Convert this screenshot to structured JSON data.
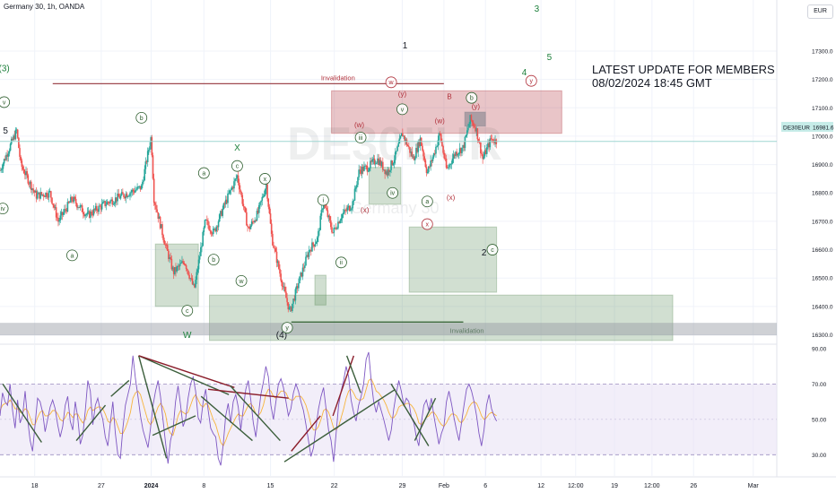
{
  "header": {
    "symbol": "Germany 30, 1h, OANDA",
    "currency": "EUR"
  },
  "watermark": {
    "ticker": "DE30EUR",
    "name": "Germany 30"
  },
  "note": {
    "line1": "LATEST UPDATE FOR MEMBERS",
    "line2": "08/02/2024 18:45 GMT"
  },
  "price_tag": {
    "symbol": "DE30EUR",
    "value": "16981.6"
  },
  "wave_labels": [
    {
      "text": "(3)",
      "t": 0.3,
      "p": 17240,
      "style": "plain-green"
    },
    {
      "text": "v",
      "t": 0.3,
      "p": 17120,
      "style": "circle-green"
    },
    {
      "text": "5",
      "t": 0.4,
      "p": 17020,
      "style": "plain-dark"
    },
    {
      "text": "iv",
      "t": 0.2,
      "p": 16745,
      "style": "circle-green"
    },
    {
      "text": "a",
      "t": 5.2,
      "p": 16580,
      "style": "circle-green"
    },
    {
      "text": "b",
      "t": 10.2,
      "p": 17065,
      "style": "circle-green"
    },
    {
      "text": "W",
      "t": 13.5,
      "p": 16300,
      "style": "plain-green"
    },
    {
      "text": "c",
      "t": 13.5,
      "p": 16385,
      "style": "circle-green"
    },
    {
      "text": "a",
      "t": 14.7,
      "p": 16870,
      "style": "circle-green"
    },
    {
      "text": "b",
      "t": 15.4,
      "p": 16565,
      "style": "circle-green"
    },
    {
      "text": "X",
      "t": 17.1,
      "p": 16960,
      "style": "plain-green"
    },
    {
      "text": "c",
      "t": 17.1,
      "p": 16895,
      "style": "circle-green"
    },
    {
      "text": "w",
      "t": 17.4,
      "p": 16490,
      "style": "circle-green"
    },
    {
      "text": "x",
      "t": 19.1,
      "p": 16850,
      "style": "circle-green"
    },
    {
      "text": "(4)",
      "t": 20.3,
      "p": 16300,
      "style": "plain-dark"
    },
    {
      "text": "y",
      "t": 20.7,
      "p": 16325,
      "style": "circle-green"
    },
    {
      "text": "i",
      "t": 23.3,
      "p": 16775,
      "style": "circle-green"
    },
    {
      "text": "ii",
      "t": 24.6,
      "p": 16555,
      "style": "circle-green"
    },
    {
      "text": "iii",
      "t": 26.0,
      "p": 16995,
      "style": "circle-green"
    },
    {
      "text": "(x)",
      "t": 26.3,
      "p": 16740,
      "style": "plain-red"
    },
    {
      "text": "(w)",
      "t": 25.9,
      "p": 17040,
      "style": "plain-red"
    },
    {
      "text": "iv",
      "t": 28.3,
      "p": 16800,
      "style": "circle-green"
    },
    {
      "text": "1",
      "t": 29.2,
      "p": 17320,
      "style": "plain-dark"
    },
    {
      "text": "w",
      "t": 28.2,
      "p": 17190,
      "style": "circle-red"
    },
    {
      "text": "(y)",
      "t": 29.0,
      "p": 17150,
      "style": "plain-red"
    },
    {
      "text": "v",
      "t": 29.0,
      "p": 17095,
      "style": "circle-green"
    },
    {
      "text": "a",
      "t": 30.8,
      "p": 16770,
      "style": "circle-green"
    },
    {
      "text": "x",
      "t": 30.8,
      "p": 16690,
      "style": "circle-red"
    },
    {
      "text": "(w)",
      "t": 31.7,
      "p": 17055,
      "style": "plain-red"
    },
    {
      "text": "(x)",
      "t": 32.5,
      "p": 16785,
      "style": "plain-red"
    },
    {
      "text": "B",
      "t": 32.4,
      "p": 17140,
      "style": "plain-red"
    },
    {
      "text": "b",
      "t": 34.0,
      "p": 17135,
      "style": "circle-green"
    },
    {
      "text": "(y)",
      "t": 34.3,
      "p": 17105,
      "style": "plain-red"
    },
    {
      "text": "2",
      "t": 34.9,
      "p": 16590,
      "style": "plain-dark"
    },
    {
      "text": "c",
      "t": 35.5,
      "p": 16600,
      "style": "circle-green"
    },
    {
      "text": "4",
      "t": 37.8,
      "p": 17225,
      "style": "plain-green"
    },
    {
      "text": "y",
      "t": 38.3,
      "p": 17195,
      "style": "circle-red"
    },
    {
      "text": "3",
      "t": 38.7,
      "p": 17450,
      "style": "plain-green"
    },
    {
      "text": "5",
      "t": 39.6,
      "p": 17280,
      "style": "plain-green"
    }
  ],
  "annotations": {
    "invalidation_top": "Invalidation",
    "invalidation_bottom": "Invalidation"
  },
  "colors": {
    "accent_green": "#1b7f3a",
    "accent_red": "#b0303a",
    "price_line": "#9fd6d2",
    "rsi_line": "#7e57c2",
    "rsi_ma": "#f7b43c",
    "rsi_band": "#e9e3f5"
  },
  "chart_data": [
    {
      "type": "candlestick",
      "symbol": "DE30EUR",
      "interval": "1h",
      "ylim": [
        16270,
        17480
      ],
      "y_ticks": [
        16300,
        16400,
        16500,
        16600,
        16700,
        16800,
        16900,
        17000,
        17100,
        17200,
        17300
      ],
      "y_tick_labels": [
        "16300.0",
        "16400.0",
        "16500.0",
        "16600.0",
        "16700.0",
        "16800.0",
        "16900.0",
        "17000.0",
        "17100.0",
        "17200.0",
        "17300.0"
      ],
      "x_tick_labels": [
        "18",
        "27",
        "2024",
        "8",
        "15",
        "22",
        "29",
        "Feb",
        "6",
        "12",
        "12:00",
        "19",
        "12:00",
        "26",
        "Mar"
      ],
      "x_tick_index": [
        2.5,
        7.3,
        10.9,
        14.7,
        19.5,
        24.1,
        29.0,
        32.0,
        35.0,
        39.0,
        41.5,
        44.3,
        47.0,
        50.0,
        54.3
      ],
      "x_tick_weights": [
        "normal",
        "normal",
        "bold",
        "normal",
        "normal",
        "normal",
        "normal",
        "normal",
        "normal",
        "normal",
        "normal",
        "normal",
        "normal",
        "normal",
        "normal"
      ],
      "price_path": [
        [
          0,
          16880
        ],
        [
          1.2,
          17020
        ],
        [
          1.5,
          16900
        ],
        [
          2.6,
          16790
        ],
        [
          3.6,
          16800
        ],
        [
          4.2,
          16700
        ],
        [
          5.2,
          16780
        ],
        [
          6.3,
          16720
        ],
        [
          7.5,
          16760
        ],
        [
          8.8,
          16790
        ],
        [
          10.2,
          16820
        ],
        [
          10.9,
          17000
        ],
        [
          11.1,
          16780
        ],
        [
          11.9,
          16620
        ],
        [
          12.5,
          16520
        ],
        [
          13.3,
          16560
        ],
        [
          14.0,
          16460
        ],
        [
          14.8,
          16700
        ],
        [
          15.4,
          16660
        ],
        [
          16.2,
          16760
        ],
        [
          17.1,
          16860
        ],
        [
          17.9,
          16670
        ],
        [
          18.6,
          16730
        ],
        [
          19.2,
          16830
        ],
        [
          19.6,
          16640
        ],
        [
          20.4,
          16470
        ],
        [
          20.9,
          16380
        ],
        [
          21.5,
          16480
        ],
        [
          22.3,
          16600
        ],
        [
          22.9,
          16640
        ],
        [
          23.3,
          16770
        ],
        [
          24.0,
          16660
        ],
        [
          24.6,
          16720
        ],
        [
          25.4,
          16760
        ],
        [
          25.9,
          16880
        ],
        [
          26.5,
          16890
        ],
        [
          27.2,
          16920
        ],
        [
          27.9,
          16870
        ],
        [
          28.5,
          16930
        ],
        [
          29.0,
          17010
        ],
        [
          29.8,
          16920
        ],
        [
          30.3,
          16990
        ],
        [
          30.8,
          16870
        ],
        [
          31.3,
          16940
        ],
        [
          31.7,
          17010
        ],
        [
          32.2,
          16880
        ],
        [
          32.8,
          16940
        ],
        [
          33.4,
          16960
        ],
        [
          33.9,
          17060
        ],
        [
          34.3,
          17030
        ],
        [
          34.8,
          16920
        ],
        [
          35.4,
          16990
        ],
        [
          35.8,
          16981.6
        ]
      ],
      "boxes": [
        {
          "from": 23.9,
          "to": 40.5,
          "high": 17160,
          "low": 17010,
          "color": "red",
          "note": "invalidation zone"
        },
        {
          "from": 33.5,
          "to": 35.0,
          "high": 17085,
          "low": 17035,
          "color": "gray"
        },
        {
          "from": 26.6,
          "to": 28.9,
          "high": 16890,
          "low": 16760,
          "color": "green"
        },
        {
          "from": 29.5,
          "to": 35.8,
          "high": 16680,
          "low": 16450,
          "color": "green"
        },
        {
          "from": 11.2,
          "to": 14.3,
          "high": 16620,
          "low": 16400,
          "color": "green"
        },
        {
          "from": 15.1,
          "to": 48.5,
          "high": 16440,
          "low": 16280,
          "color": "green"
        },
        {
          "from": 22.7,
          "to": 23.5,
          "high": 16510,
          "low": 16405,
          "color": "green"
        }
      ],
      "levels": [
        {
          "from": 3.8,
          "to": 32.0,
          "price": 17185,
          "color": "red",
          "label": "Invalidation"
        },
        {
          "from": 21.0,
          "to": 33.4,
          "price": 16345,
          "color": "green",
          "label": "Invalidation"
        },
        {
          "from": 0,
          "to": 56,
          "price": 16320,
          "color": "gray-band"
        }
      ],
      "last_price": 16981.6
    },
    {
      "type": "line",
      "name": "RSI",
      "ylim": [
        18,
        92
      ],
      "y_ticks": [
        30,
        50,
        70,
        90
      ],
      "y_tick_labels": [
        "30.00",
        "50.00",
        "70.00",
        "90.00"
      ],
      "band": [
        30,
        70
      ],
      "series": [
        {
          "values": [
            52,
            65,
            60,
            58,
            70,
            55,
            45,
            61,
            48,
            52,
            66,
            50,
            38,
            32,
            47,
            62,
            60,
            54,
            43,
            50,
            57,
            61,
            56,
            47,
            40,
            46,
            58,
            63,
            49,
            44,
            60,
            51,
            36,
            41,
            55,
            72,
            66,
            47,
            58,
            62,
            55,
            50,
            40,
            35,
            48,
            60,
            42,
            30,
            28,
            45,
            58,
            64,
            70,
            86,
            73,
            63,
            52,
            44,
            39,
            34,
            45,
            58,
            66,
            72,
            63,
            50,
            37,
            25,
            38,
            44,
            60,
            69,
            58,
            46,
            50,
            62,
            70,
            74,
            66,
            51,
            48,
            60,
            67,
            55,
            45,
            42,
            40,
            28,
            24,
            36,
            52,
            59,
            48,
            60,
            64,
            57,
            44,
            56,
            67,
            72,
            61,
            48,
            40,
            52,
            64,
            71,
            80,
            74,
            58,
            50,
            60,
            70,
            73,
            68,
            60,
            52,
            56,
            65,
            70,
            66,
            60,
            55,
            47,
            38,
            29,
            34,
            46,
            56,
            63,
            68,
            56,
            44,
            38,
            26,
            42,
            58,
            66,
            72,
            80,
            74,
            61,
            54,
            49,
            58,
            63,
            70,
            84,
            88,
            72,
            60,
            54,
            60,
            55,
            50,
            44,
            38,
            44,
            56,
            65,
            72,
            66,
            58,
            62,
            60,
            51,
            48,
            40,
            35,
            48,
            58,
            61,
            55,
            62,
            52,
            44,
            36,
            42,
            46,
            60,
            66,
            59,
            51,
            44,
            38,
            48,
            58,
            67,
            70,
            66,
            60,
            52,
            42,
            35,
            44,
            58,
            64,
            56,
            52,
            49
          ]
        },
        {
          "values": [
            55,
            58,
            59,
            59,
            61,
            59,
            56,
            56,
            54,
            54,
            56,
            55,
            51,
            47,
            47,
            51,
            54,
            55,
            52,
            52,
            53,
            55,
            55,
            53,
            50,
            49,
            51,
            54,
            53,
            51,
            53,
            53,
            50,
            48,
            50,
            55,
            57,
            55,
            56,
            57,
            57,
            56,
            53,
            49,
            48,
            51,
            50,
            46,
            42,
            42,
            45,
            49,
            54,
            62,
            65,
            66,
            64,
            59,
            54,
            49,
            47,
            49,
            53,
            57,
            59,
            57,
            53,
            45,
            42,
            41,
            46,
            52,
            55,
            54,
            53,
            54,
            58,
            62,
            64,
            61,
            58,
            57,
            59,
            58,
            54,
            50,
            47,
            42,
            37,
            35,
            38,
            42,
            45,
            48,
            51,
            53,
            52,
            52,
            55,
            58,
            59,
            57,
            53,
            52,
            54,
            58,
            64,
            67,
            66,
            63,
            62,
            64,
            66,
            66,
            65,
            62,
            61,
            61,
            63,
            63,
            63,
            61,
            58,
            53,
            47,
            44,
            44,
            46,
            50,
            55,
            56,
            54,
            50,
            45,
            44,
            46,
            51,
            56,
            62,
            66,
            67,
            65,
            62,
            61,
            61,
            62,
            67,
            72,
            73,
            70,
            66,
            65,
            63,
            61,
            58,
            54,
            51,
            51,
            53,
            57,
            58,
            58,
            59,
            59,
            58,
            56,
            53,
            48,
            47,
            49,
            51,
            52,
            54,
            54,
            52,
            49,
            47,
            46,
            48,
            51,
            53,
            53,
            52,
            49,
            48,
            50,
            53,
            57,
            59,
            60,
            59,
            56,
            52,
            50,
            51,
            53,
            54,
            53,
            52
          ]
        }
      ],
      "trendlines": [
        {
          "from": [
            0.2,
            70
          ],
          "to": [
            3.0,
            37
          ],
          "color": "green"
        },
        {
          "from": [
            5.5,
            38
          ],
          "to": [
            7.6,
            58
          ],
          "color": "green"
        },
        {
          "from": [
            8.0,
            63
          ],
          "to": [
            9.3,
            72
          ],
          "color": "green"
        },
        {
          "from": [
            10.0,
            86
          ],
          "to": [
            12.0,
            28
          ],
          "color": "green"
        },
        {
          "from": [
            10.0,
            86
          ],
          "to": [
            16.5,
            64
          ],
          "color": "green"
        },
        {
          "from": [
            10.0,
            86
          ],
          "to": [
            16.9,
            68
          ],
          "color": "red"
        },
        {
          "from": [
            11.0,
            41
          ],
          "to": [
            14.1,
            52
          ],
          "color": "green"
        },
        {
          "from": [
            14.5,
            63
          ],
          "to": [
            18.2,
            38
          ],
          "color": "green"
        },
        {
          "from": [
            15.0,
            67
          ],
          "to": [
            20.8,
            62
          ],
          "color": "red"
        },
        {
          "from": [
            16.6,
            69
          ],
          "to": [
            20.2,
            38
          ],
          "color": "green"
        },
        {
          "from": [
            20.5,
            26
          ],
          "to": [
            28.5,
            67
          ],
          "color": "green"
        },
        {
          "from": [
            21.0,
            32
          ],
          "to": [
            23.1,
            52
          ],
          "color": "red"
        },
        {
          "from": [
            24.0,
            52
          ],
          "to": [
            25.5,
            86
          ],
          "color": "red"
        },
        {
          "from": [
            25.0,
            86
          ],
          "to": [
            26.0,
            65
          ],
          "color": "green"
        },
        {
          "from": [
            28.2,
            70
          ],
          "to": [
            30.9,
            35
          ],
          "color": "green"
        },
        {
          "from": [
            29.9,
            38
          ],
          "to": [
            31.4,
            62
          ],
          "color": "green"
        }
      ]
    }
  ]
}
